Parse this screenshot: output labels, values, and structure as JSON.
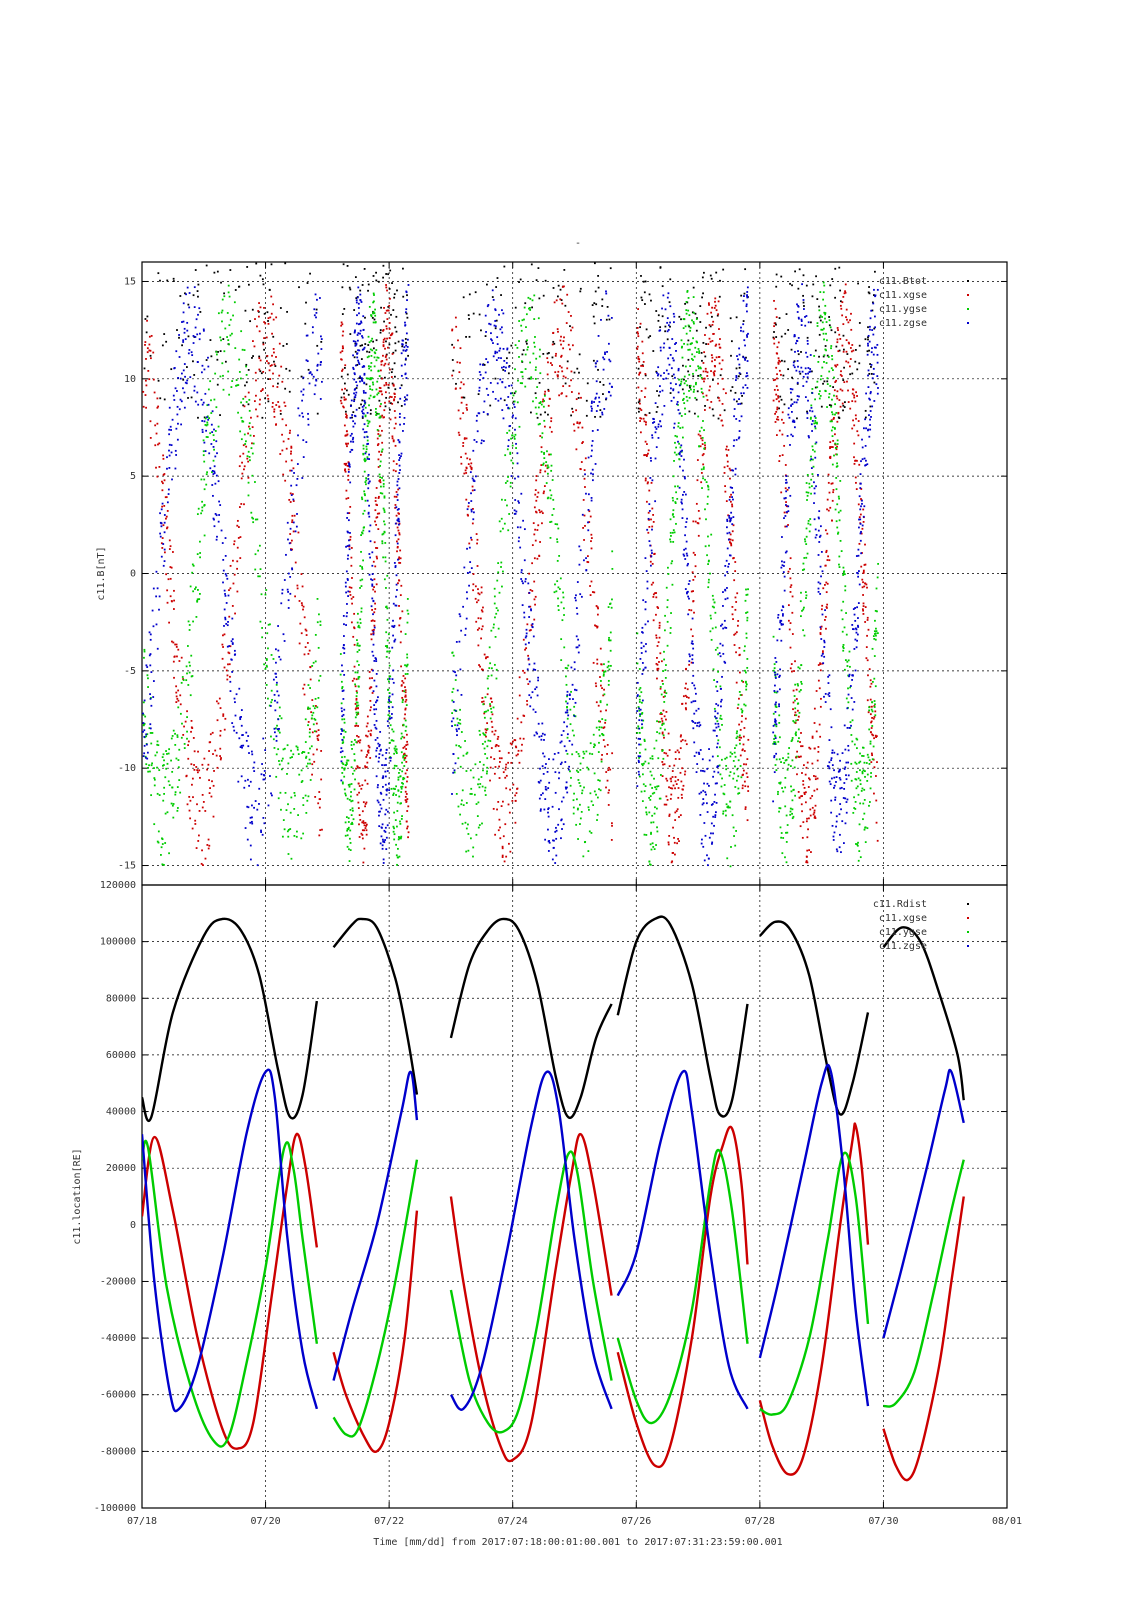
{
  "figure": {
    "title": "-",
    "xlabel": "Time [mm/dd]  from 2017:07:18:00:01:00.001  to  2017:07:31:23:59:00.001"
  },
  "chart_data": [
    {
      "type": "scatter",
      "ylabel": "c11.B[nT]",
      "xlim": [
        "07/18",
        "08/01"
      ],
      "ylim": [
        -16,
        16
      ],
      "yticks": [
        15,
        10,
        5,
        0,
        -5,
        -10,
        -15
      ],
      "xticks": [
        "07/18",
        "07/20",
        "07/22",
        "07/24",
        "07/26",
        "07/28",
        "07/30",
        "08/01"
      ],
      "grid": true,
      "legend_position": "top-right",
      "series": [
        {
          "name": "c11.Btot",
          "color": "#000000"
        },
        {
          "name": "c11.xgse",
          "color": "#cc0000"
        },
        {
          "name": "c11.ygse",
          "color": "#00cc00"
        },
        {
          "name": "c11.zgse",
          "color": "#0000cc"
        }
      ],
      "active_intervals_days": [
        [
          0.0,
          2.9
        ],
        [
          3.2,
          4.3
        ],
        [
          5.0,
          7.6
        ],
        [
          8.0,
          9.8
        ],
        [
          10.2,
          11.9
        ]
      ]
    },
    {
      "type": "line",
      "ylabel": "c11.location[RE]",
      "xlim": [
        "07/18",
        "08/01"
      ],
      "ylim": [
        -100000,
        120000
      ],
      "yticks": [
        120000,
        100000,
        80000,
        60000,
        40000,
        20000,
        0,
        -20000,
        -40000,
        -60000,
        -80000,
        -100000
      ],
      "xticks": [
        "07/18",
        "07/20",
        "07/22",
        "07/24",
        "07/26",
        "07/28",
        "07/30",
        "08/01"
      ],
      "grid": true,
      "legend_position": "top-right",
      "series": [
        {
          "name": "c11.Rdist",
          "color": "#000000"
        },
        {
          "name": "c11.xgse",
          "color": "#cc0000"
        },
        {
          "name": "c11.ygse",
          "color": "#00cc00"
        },
        {
          "name": "c11.zgse",
          "color": "#0000cc"
        }
      ],
      "segments": [
        {
          "Rdist": [
            [
              0.0,
              45000
            ],
            [
              0.15,
              38000
            ],
            [
              0.5,
              75000
            ],
            [
              1.0,
              102000
            ],
            [
              1.3,
              108000
            ],
            [
              1.6,
              104000
            ],
            [
              1.9,
              88000
            ],
            [
              2.2,
              55000
            ],
            [
              2.4,
              38000
            ],
            [
              2.6,
              46000
            ],
            [
              2.83,
              79000
            ]
          ],
          "xgse": [
            [
              0.0,
              3000
            ],
            [
              0.2,
              31000
            ],
            [
              0.5,
              5000
            ],
            [
              0.9,
              -40000
            ],
            [
              1.3,
              -72000
            ],
            [
              1.55,
              -79000
            ],
            [
              1.8,
              -70000
            ],
            [
              2.1,
              -25000
            ],
            [
              2.35,
              14000
            ],
            [
              2.5,
              32000
            ],
            [
              2.65,
              20000
            ],
            [
              2.83,
              -8000
            ]
          ],
          "ygse": [
            [
              0.0,
              23000
            ],
            [
              0.1,
              27000
            ],
            [
              0.4,
              -22000
            ],
            [
              0.8,
              -58000
            ],
            [
              1.15,
              -76000
            ],
            [
              1.4,
              -75000
            ],
            [
              1.7,
              -48000
            ],
            [
              2.0,
              -15000
            ],
            [
              2.3,
              27000
            ],
            [
              2.45,
              20000
            ],
            [
              2.6,
              -5000
            ],
            [
              2.83,
              -42000
            ]
          ],
          "zgse": [
            [
              0.0,
              32000
            ],
            [
              0.2,
              -20000
            ],
            [
              0.45,
              -59000
            ],
            [
              0.6,
              -65000
            ],
            [
              0.9,
              -50000
            ],
            [
              1.3,
              -12000
            ],
            [
              1.7,
              33000
            ],
            [
              2.0,
              54000
            ],
            [
              2.15,
              45000
            ],
            [
              2.35,
              -4000
            ],
            [
              2.6,
              -45000
            ],
            [
              2.83,
              -65000
            ]
          ]
        },
        {
          "Rdist": [
            [
              3.1,
              98000
            ],
            [
              3.4,
              106000
            ],
            [
              3.55,
              108000
            ],
            [
              3.8,
              105000
            ],
            [
              4.1,
              87000
            ],
            [
              4.3,
              66000
            ],
            [
              4.45,
              46000
            ]
          ],
          "xgse": [
            [
              3.1,
              -45000
            ],
            [
              3.3,
              -60000
            ],
            [
              3.6,
              -75000
            ],
            [
              3.8,
              -80000
            ],
            [
              4.0,
              -70000
            ],
            [
              4.25,
              -40000
            ],
            [
              4.45,
              5000
            ]
          ],
          "ygse": [
            [
              3.1,
              -68000
            ],
            [
              3.3,
              -74000
            ],
            [
              3.5,
              -72000
            ],
            [
              3.8,
              -50000
            ],
            [
              4.1,
              -20000
            ],
            [
              4.45,
              23000
            ]
          ],
          "zgse": [
            [
              3.1,
              -55000
            ],
            [
              3.4,
              -30000
            ],
            [
              3.8,
              0
            ],
            [
              4.2,
              40000
            ],
            [
              4.35,
              54000
            ],
            [
              4.45,
              37000
            ]
          ]
        },
        {
          "Rdist": [
            [
              5.0,
              66000
            ],
            [
              5.3,
              92000
            ],
            [
              5.6,
              104000
            ],
            [
              5.85,
              108000
            ],
            [
              6.1,
              104000
            ],
            [
              6.4,
              85000
            ],
            [
              6.7,
              52000
            ],
            [
              6.9,
              38000
            ],
            [
              7.1,
              45000
            ],
            [
              7.35,
              66000
            ],
            [
              7.6,
              78000
            ]
          ],
          "xgse": [
            [
              5.0,
              10000
            ],
            [
              5.2,
              -20000
            ],
            [
              5.5,
              -55000
            ],
            [
              5.8,
              -78000
            ],
            [
              6.0,
              -83000
            ],
            [
              6.3,
              -70000
            ],
            [
              6.7,
              -15000
            ],
            [
              6.95,
              18000
            ],
            [
              7.1,
              32000
            ],
            [
              7.3,
              15000
            ],
            [
              7.6,
              -25000
            ]
          ],
          "ygse": [
            [
              5.0,
              -23000
            ],
            [
              5.3,
              -55000
            ],
            [
              5.6,
              -70000
            ],
            [
              5.85,
              -73000
            ],
            [
              6.1,
              -65000
            ],
            [
              6.4,
              -35000
            ],
            [
              6.7,
              5000
            ],
            [
              6.9,
              25000
            ],
            [
              7.05,
              18000
            ],
            [
              7.3,
              -20000
            ],
            [
              7.6,
              -55000
            ]
          ],
          "zgse": [
            [
              5.0,
              -60000
            ],
            [
              5.2,
              -65000
            ],
            [
              5.5,
              -50000
            ],
            [
              5.9,
              -10000
            ],
            [
              6.3,
              35000
            ],
            [
              6.55,
              54000
            ],
            [
              6.75,
              40000
            ],
            [
              7.0,
              -5000
            ],
            [
              7.3,
              -45000
            ],
            [
              7.6,
              -65000
            ]
          ]
        },
        {
          "Rdist": [
            [
              7.7,
              74000
            ],
            [
              8.0,
              100000
            ],
            [
              8.3,
              108000
            ],
            [
              8.55,
              106000
            ],
            [
              8.9,
              85000
            ],
            [
              9.2,
              52000
            ],
            [
              9.35,
              39000
            ],
            [
              9.55,
              44000
            ],
            [
              9.8,
              78000
            ]
          ],
          "xgse": [
            [
              7.7,
              -45000
            ],
            [
              8.0,
              -70000
            ],
            [
              8.3,
              -85000
            ],
            [
              8.55,
              -78000
            ],
            [
              8.9,
              -40000
            ],
            [
              9.2,
              10000
            ],
            [
              9.4,
              28000
            ],
            [
              9.55,
              34000
            ],
            [
              9.7,
              15000
            ],
            [
              9.8,
              -14000
            ]
          ],
          "ygse": [
            [
              7.7,
              -40000
            ],
            [
              8.0,
              -62000
            ],
            [
              8.25,
              -70000
            ],
            [
              8.55,
              -60000
            ],
            [
              8.9,
              -30000
            ],
            [
              9.2,
              15000
            ],
            [
              9.35,
              26000
            ],
            [
              9.55,
              5000
            ],
            [
              9.8,
              -42000
            ]
          ],
          "zgse": [
            [
              7.7,
              -25000
            ],
            [
              8.0,
              -10000
            ],
            [
              8.4,
              30000
            ],
            [
              8.75,
              54000
            ],
            [
              8.9,
              40000
            ],
            [
              9.2,
              -10000
            ],
            [
              9.5,
              -50000
            ],
            [
              9.8,
              -65000
            ]
          ]
        },
        {
          "Rdist": [
            [
              10.0,
              102000
            ],
            [
              10.25,
              107000
            ],
            [
              10.5,
              104000
            ],
            [
              10.8,
              88000
            ],
            [
              11.1,
              55000
            ],
            [
              11.3,
              39000
            ],
            [
              11.5,
              50000
            ],
            [
              11.75,
              75000
            ]
          ],
          "xgse": [
            [
              10.0,
              -62000
            ],
            [
              10.2,
              -78000
            ],
            [
              10.45,
              -88000
            ],
            [
              10.7,
              -82000
            ],
            [
              11.0,
              -50000
            ],
            [
              11.3,
              0
            ],
            [
              11.5,
              30000
            ],
            [
              11.55,
              35000
            ],
            [
              11.65,
              20000
            ],
            [
              11.75,
              -7000
            ]
          ],
          "ygse": [
            [
              10.0,
              -65000
            ],
            [
              10.2,
              -67000
            ],
            [
              10.45,
              -63000
            ],
            [
              10.8,
              -40000
            ],
            [
              11.1,
              -5000
            ],
            [
              11.35,
              25000
            ],
            [
              11.55,
              10000
            ],
            [
              11.75,
              -35000
            ]
          ],
          "zgse": [
            [
              10.0,
              -47000
            ],
            [
              10.3,
              -20000
            ],
            [
              10.7,
              20000
            ],
            [
              11.0,
              50000
            ],
            [
              11.15,
              54000
            ],
            [
              11.35,
              20000
            ],
            [
              11.55,
              -30000
            ],
            [
              11.75,
              -64000
            ]
          ]
        },
        {
          "Rdist": [
            [
              12.0,
              98000
            ],
            [
              12.3,
              105000
            ],
            [
              12.6,
              100000
            ],
            [
              12.9,
              82000
            ],
            [
              13.2,
              60000
            ],
            [
              13.3,
              44000
            ]
          ],
          "xgse": [
            [
              12.0,
              -72000
            ],
            [
              12.2,
              -85000
            ],
            [
              12.4,
              -90000
            ],
            [
              12.6,
              -80000
            ],
            [
              12.9,
              -50000
            ],
            [
              13.1,
              -20000
            ],
            [
              13.3,
              10000
            ]
          ],
          "ygse": [
            [
              12.0,
              -64000
            ],
            [
              12.2,
              -63000
            ],
            [
              12.5,
              -52000
            ],
            [
              12.8,
              -25000
            ],
            [
              13.1,
              5000
            ],
            [
              13.3,
              23000
            ]
          ],
          "zgse": [
            [
              12.0,
              -40000
            ],
            [
              12.3,
              -15000
            ],
            [
              12.7,
              20000
            ],
            [
              13.0,
              48000
            ],
            [
              13.1,
              54000
            ],
            [
              13.3,
              36000
            ]
          ]
        }
      ]
    }
  ]
}
